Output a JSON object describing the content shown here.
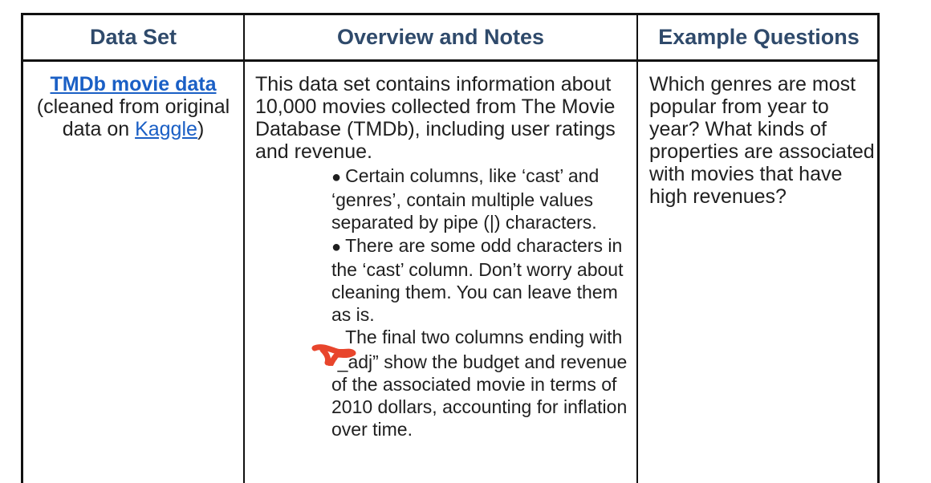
{
  "headers": {
    "data_set": "Data Set",
    "overview": "Overview and Notes",
    "questions": "Example Questions"
  },
  "row": {
    "data_set_link": "TMDb movie data",
    "data_set_text_before": "(cleaned from original data on ",
    "kaggle_link": "Kaggle",
    "data_set_text_after": ")",
    "overview_intro": "This data set contains information about 10,000 movies collected from The Movie Database (TMDb), including user ratings and revenue.",
    "notes": [
      "Certain columns, like ‘cast’ and ‘genres’, contain multiple values separated by pipe (|) characters.",
      "There are some odd characters in the ‘cast’ column. Don’t worry about cleaning them. You can leave them as is.",
      "The final two columns ending with “_adj” show the budget and revenue of the associated movie in terms of 2010 dollars, accounting for inflation over time."
    ],
    "bullet_glyph": "●",
    "example_questions": "Which genres are most popular from year to year? What kinds of properties are associated with movies that have high revenues?"
  },
  "colors": {
    "header_text": "#2f4a6b",
    "link": "#1a5fc5",
    "annotation_mark": "#e8452c"
  }
}
